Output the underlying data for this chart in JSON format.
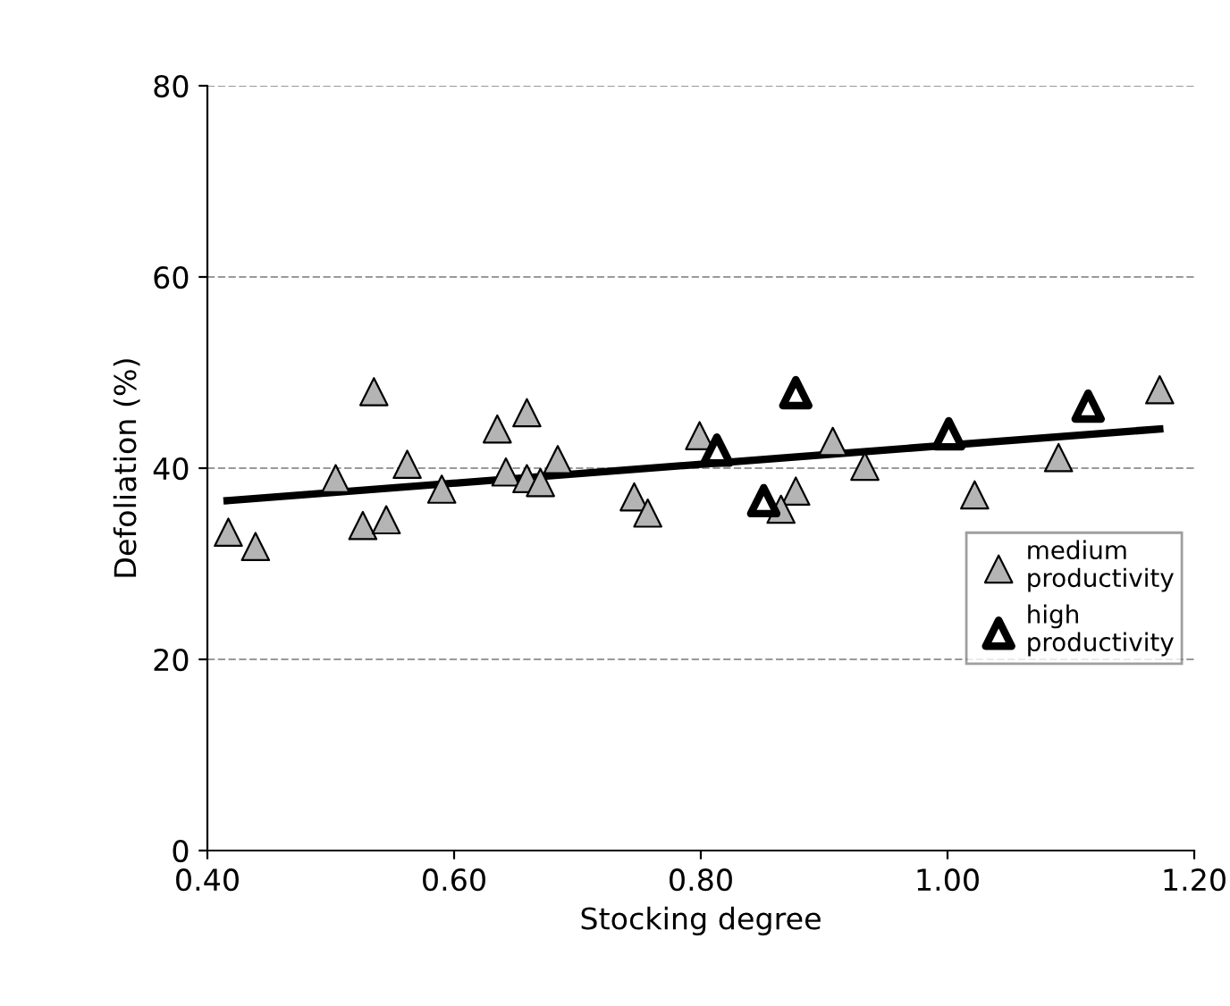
{
  "chart_data": {
    "type": "scatter",
    "xlabel": "Stocking degree",
    "ylabel": "Defoliation (%)",
    "xlim": [
      0.4,
      1.2
    ],
    "xticks": [
      {
        "value": 0.4,
        "label": "0.40"
      },
      {
        "value": 0.6,
        "label": "0.60"
      },
      {
        "value": 0.8,
        "label": "0.80"
      },
      {
        "value": 1.0,
        "label": "1.00"
      },
      {
        "value": 1.2,
        "label": "1.20"
      }
    ],
    "ylim": [
      0,
      80
    ],
    "yticks": [
      0,
      20,
      40,
      60,
      80
    ],
    "grid": "y",
    "legend": "right",
    "series": [
      {
        "name": "medium productivity",
        "color": "#b4b4b4",
        "marker": "triangle",
        "x": [
          0.417,
          0.439,
          0.504,
          0.535,
          0.526,
          0.545,
          0.562,
          0.59,
          0.635,
          0.659,
          0.642,
          0.659,
          0.67,
          0.684,
          0.799,
          0.746,
          0.757,
          0.907,
          0.933,
          0.877,
          0.865,
          1.022,
          1.09,
          1.172
        ],
        "values": [
          33.3,
          31.8,
          38.9,
          48.0,
          34.0,
          34.6,
          40.4,
          37.8,
          44.1,
          45.8,
          39.6,
          38.9,
          38.5,
          40.9,
          43.4,
          37.0,
          35.3,
          42.8,
          40.2,
          37.6,
          35.7,
          37.2,
          41.1,
          48.2
        ]
      },
      {
        "name": "high productivity",
        "color": "#ffffff",
        "marker": "triangle",
        "x": [
          0.813,
          0.877,
          0.851,
          1.001,
          1.114
        ],
        "values": [
          41.9,
          47.9,
          36.6,
          43.6,
          46.5
        ]
      },
      {
        "type": "line",
        "color": "#000000",
        "marker": "none",
        "x": [
          0.416,
          1.172
        ],
        "values": [
          36.6,
          44.1
        ]
      }
    ]
  }
}
